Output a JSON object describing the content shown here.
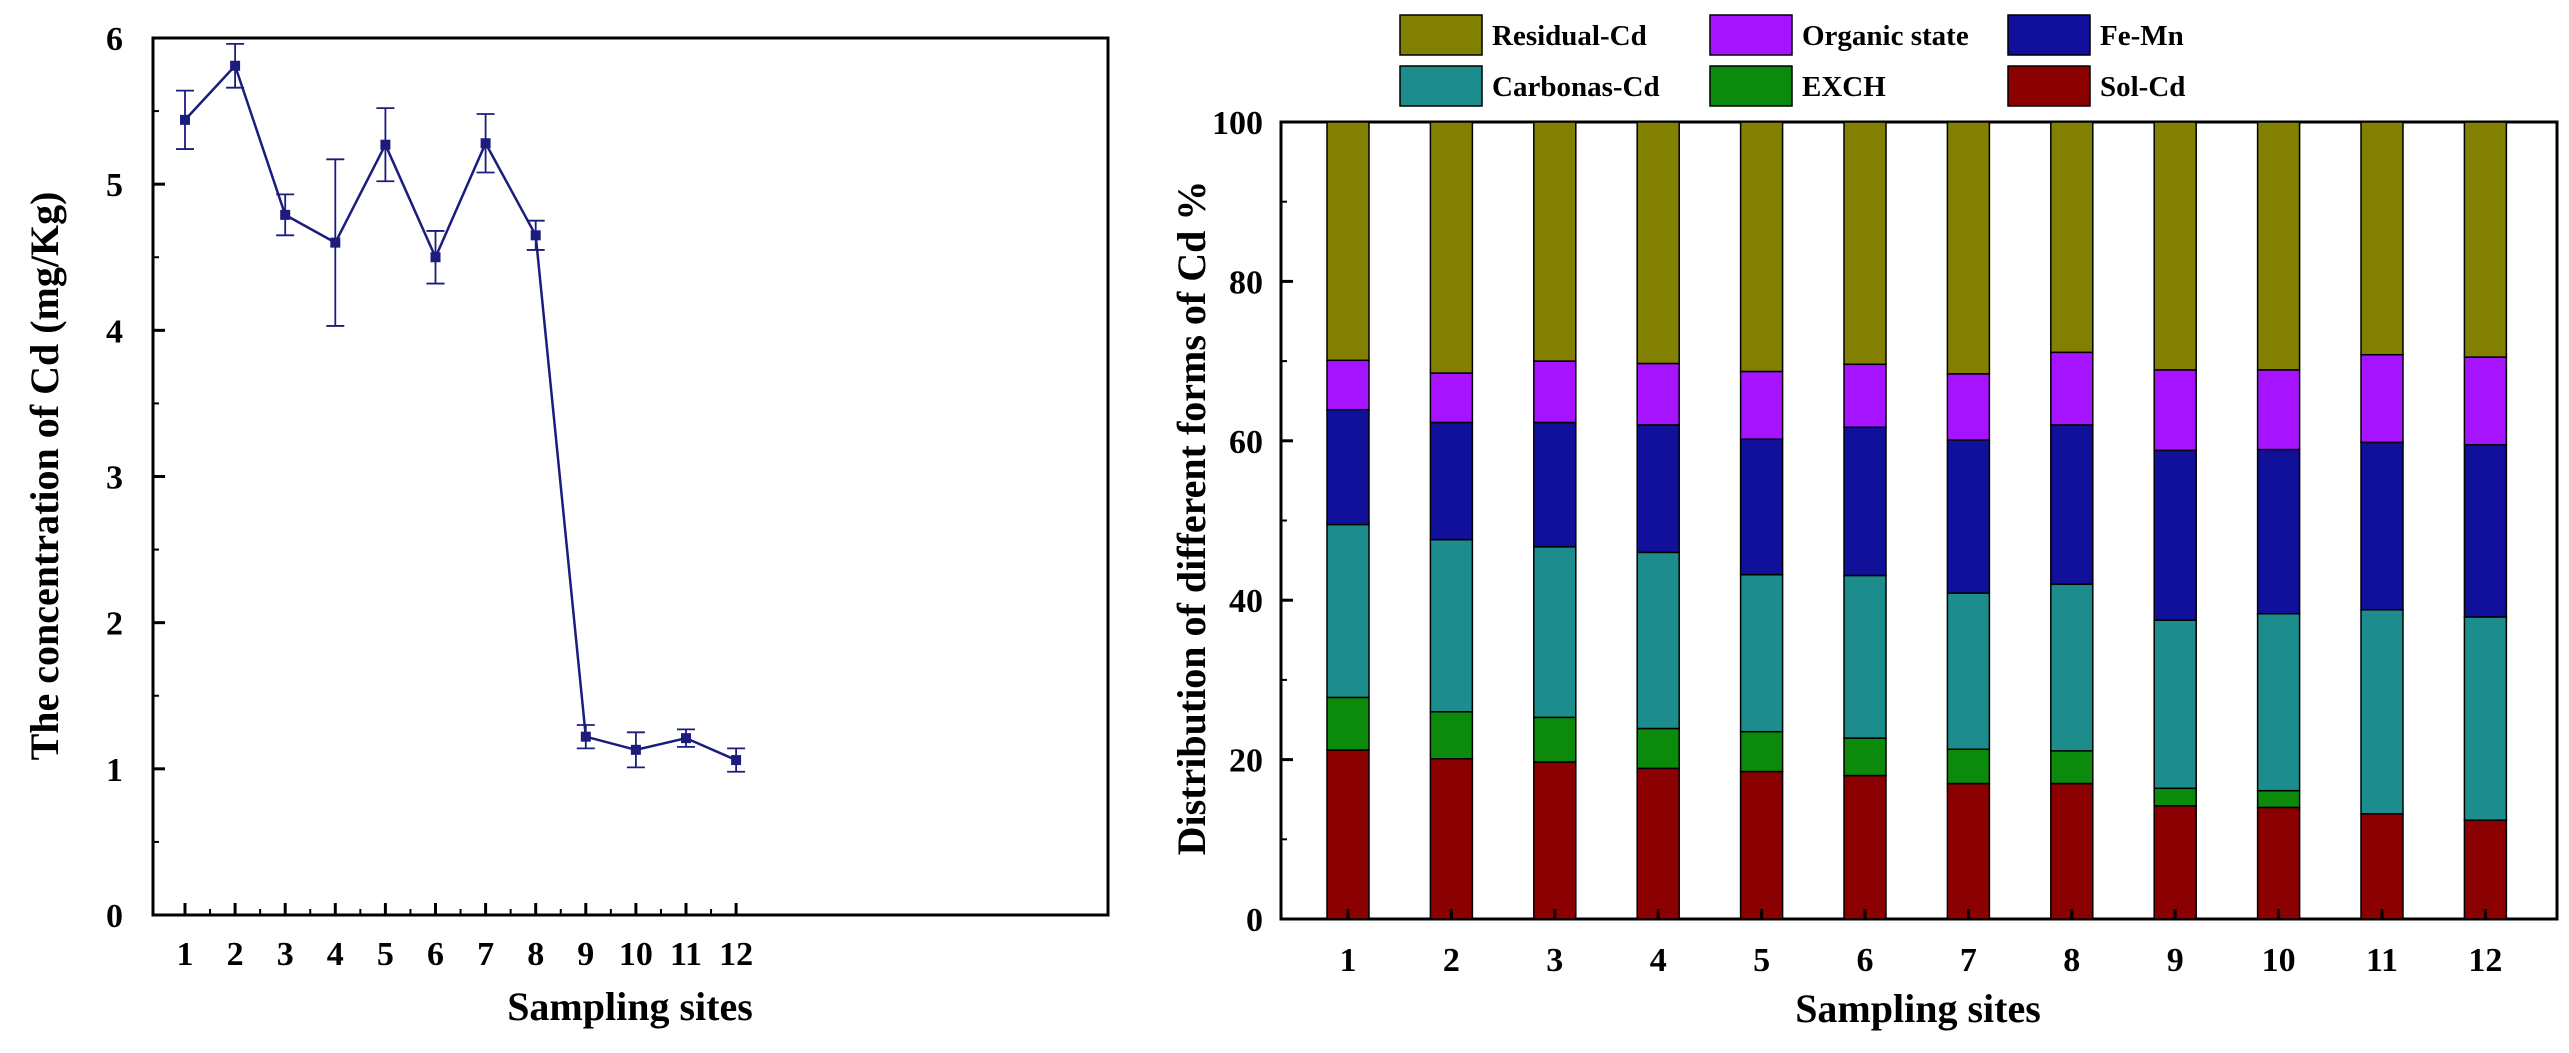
{
  "chart_data": [
    {
      "type": "line",
      "title": "",
      "xlabel": "Sampling sites",
      "ylabel": "The concentration of Cd (mg/Kg)",
      "x": [
        "1",
        "2",
        "3",
        "4",
        "5",
        "6",
        "7",
        "8",
        "9",
        "10",
        "11",
        "12"
      ],
      "ylim": [
        0,
        6
      ],
      "yticks": [
        "0",
        "1",
        "2",
        "3",
        "4",
        "5",
        "6"
      ],
      "grid": false,
      "series": [
        {
          "values": [
            5.44,
            5.81,
            4.79,
            4.6,
            5.27,
            4.5,
            5.28,
            4.65,
            1.22,
            1.13,
            1.21,
            1.06
          ],
          "error": [
            0.2,
            0.15,
            0.14,
            0.57,
            0.25,
            0.18,
            0.2,
            0.1,
            0.08,
            0.12,
            0.06,
            0.08
          ]
        }
      ],
      "colors": {
        "line": "#1c1c7c",
        "marker": "#1c1c7c"
      }
    },
    {
      "type": "bar",
      "stacked": true,
      "title": "",
      "xlabel": "Sampling sites",
      "ylabel": "Distribution of different forms of Cd  %",
      "categories": [
        "1",
        "2",
        "3",
        "4",
        "5",
        "6",
        "7",
        "8",
        "9",
        "10",
        "11",
        "12"
      ],
      "ylim": [
        0,
        100
      ],
      "yticks": [
        "0",
        "20",
        "40",
        "60",
        "80",
        "100"
      ],
      "grid": false,
      "legend_position": "top",
      "series": [
        {
          "name": "Sol-Cd",
          "color": "#8b0000",
          "values": [
            21.2,
            20.1,
            19.7,
            18.9,
            18.5,
            18.0,
            17.0,
            17.0,
            14.2,
            14.0,
            13.2,
            12.4
          ]
        },
        {
          "name": "EXCH",
          "color": "#0c8a0c",
          "values": [
            6.6,
            5.9,
            5.6,
            5.0,
            5.0,
            4.7,
            4.3,
            4.1,
            2.2,
            2.1,
            0.0,
            0.0
          ]
        },
        {
          "name": "Carbonas-Cd",
          "color": "#1c8c8c",
          "values": [
            21.7,
            21.6,
            21.4,
            22.1,
            19.7,
            20.4,
            19.6,
            20.9,
            21.1,
            22.2,
            25.6,
            25.5
          ]
        },
        {
          "name": "Fe-Mn",
          "color": "#10109a",
          "values": [
            14.4,
            14.7,
            15.6,
            16.0,
            17.0,
            18.6,
            19.2,
            20.0,
            21.3,
            20.6,
            21.0,
            21.6
          ]
        },
        {
          "name": "Organic state",
          "color": "#a614ff",
          "values": [
            6.2,
            6.2,
            7.7,
            7.7,
            8.5,
            7.9,
            8.3,
            9.1,
            10.1,
            10.0,
            11.0,
            11.0
          ]
        },
        {
          "name": "Residual-Cd",
          "color": "#818000",
          "values": [
            29.9,
            31.5,
            30.0,
            30.3,
            31.3,
            30.4,
            31.6,
            28.9,
            31.1,
            31.1,
            29.2,
            29.5
          ]
        }
      ],
      "legend_order": [
        "Residual-Cd",
        "Organic state",
        "Fe-Mn",
        "Carbonas-Cd",
        "EXCH",
        "Sol-Cd"
      ]
    }
  ]
}
